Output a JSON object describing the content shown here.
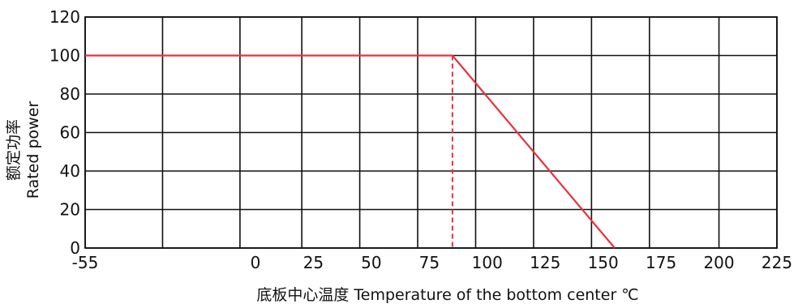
{
  "chart_data": {
    "type": "line",
    "title": "",
    "xlabel": "底板中心温度 Temperature of the bottom center ℃",
    "ylabel_lines": [
      "额定功率",
      "Rated power"
    ],
    "x_tick_labels": [
      "-55",
      "0",
      "25",
      "50",
      "75",
      "100",
      "125",
      "150",
      "175",
      "200",
      "225"
    ],
    "x_ticks_values": [
      -55,
      0,
      25,
      50,
      75,
      100,
      125,
      150,
      175,
      200,
      225
    ],
    "x_vertical_gridlines": [
      -55,
      -30,
      -5,
      20,
      45,
      70,
      95,
      120,
      145,
      170,
      200,
      225
    ],
    "y_ticks": [
      0,
      20,
      40,
      60,
      80,
      100,
      120
    ],
    "ylim": [
      0,
      120
    ],
    "grid": true,
    "series": [
      {
        "x": [
          -55,
          85,
          155
        ],
        "y": [
          100,
          100,
          0
        ],
        "color": "#e8323c"
      }
    ],
    "reference_line": {
      "x": 85,
      "y_from": 0,
      "y_to": 100,
      "style": "dashed",
      "color": "#e8323c"
    }
  }
}
